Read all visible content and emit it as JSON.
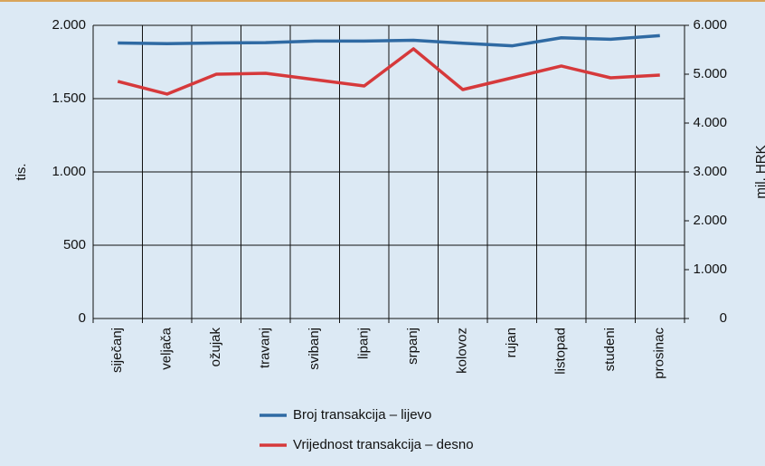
{
  "chart_data": {
    "type": "line",
    "ylabel": "tis.",
    "y2label": "mil. HRK",
    "categories": [
      "siječanj",
      "veljača",
      "ožujak",
      "travanj",
      "svibanj",
      "lipanj",
      "srpanj",
      "kolovoz",
      "rujan",
      "listopad",
      "studeni",
      "prosinac"
    ],
    "series": [
      {
        "name": "Broj transakcija – lijevo",
        "color": "#2f6aa3",
        "values": [
          1880,
          1875,
          1880,
          1882,
          1893,
          1893,
          1898,
          1878,
          1860,
          1915,
          1905,
          1930
        ]
      },
      {
        "name": "Vrijednost transakcija – desno",
        "color": "#d6393b",
        "axis": "y2",
        "values": [
          4852,
          4593,
          5000,
          5019,
          4889,
          4759,
          5519,
          4685,
          4926,
          5167,
          4926,
          4981
        ]
      }
    ],
    "ylim": [
      0,
      2000
    ],
    "yticks": [
      0,
      500,
      {
        "value": 1000,
        "label": "1.000"
      },
      {
        "value": 1500,
        "label": "1.500"
      },
      {
        "value": 2000,
        "label": "2.000"
      }
    ],
    "y2lim": [
      0,
      6000
    ],
    "y2ticks": [
      0,
      {
        "value": 1000,
        "label": "1.000"
      },
      {
        "value": 2000,
        "label": "2.000"
      },
      {
        "value": 3000,
        "label": "3.000"
      },
      {
        "value": 4000,
        "label": "4.000"
      },
      {
        "value": 5000,
        "label": "5.000"
      },
      {
        "value": 6000,
        "label": "6.000"
      }
    ],
    "grid": true,
    "legend": "bottom"
  }
}
